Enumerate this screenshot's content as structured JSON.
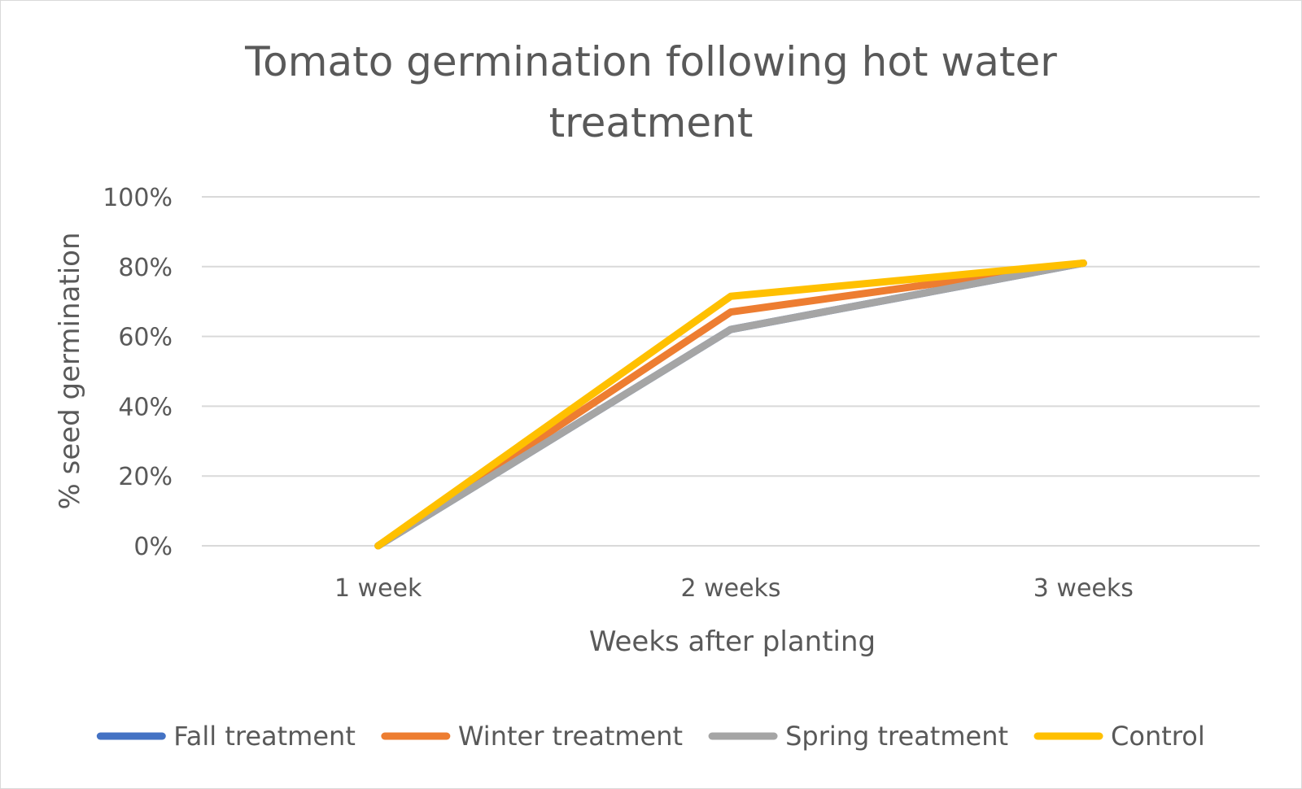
{
  "chart_data": {
    "type": "line",
    "title": "Tomato germination following hot water treatment",
    "title_lines": [
      "Tomato germination following hot water",
      "treatment"
    ],
    "xlabel": "Weeks after planting",
    "ylabel": "% seed germination",
    "categories": [
      "1 week",
      "2 weeks",
      "3 weeks"
    ],
    "ylim": [
      0,
      100
    ],
    "yticks": [
      0,
      20,
      40,
      60,
      80,
      100
    ],
    "ytick_labels": [
      "0%",
      "20%",
      "40%",
      "60%",
      "80%",
      "100%"
    ],
    "grid": true,
    "legend_position": "bottom",
    "series": [
      {
        "name": "Fall treatment",
        "color": "#4472c4",
        "values": [
          0,
          62,
          81
        ]
      },
      {
        "name": "Winter treatment",
        "color": "#ed7d31",
        "values": [
          0,
          67,
          81
        ]
      },
      {
        "name": "Spring treatment",
        "color": "#a5a5a5",
        "values": [
          0,
          62,
          81
        ]
      },
      {
        "name": "Control",
        "color": "#ffc000",
        "values": [
          0,
          71.5,
          81
        ]
      }
    ]
  }
}
